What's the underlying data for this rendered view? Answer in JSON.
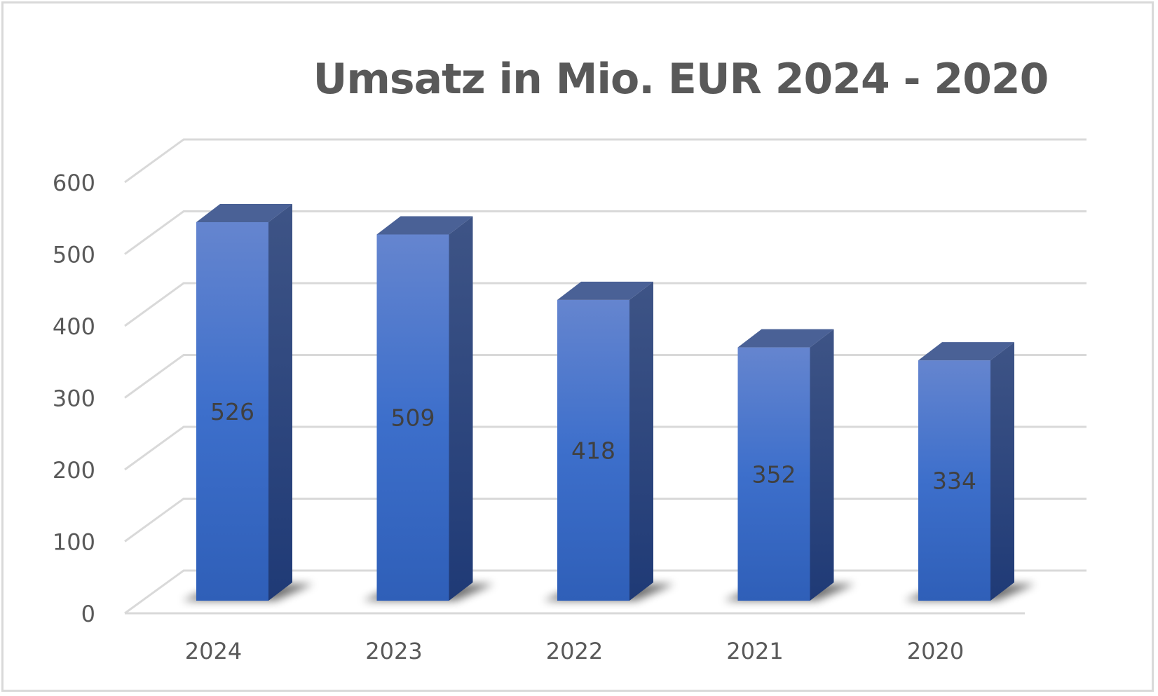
{
  "chart_data": {
    "type": "bar",
    "style": "3d-column",
    "title": "Umsatz in Mio. EUR 2024 - 2020",
    "xlabel": "",
    "ylabel": "",
    "categories": [
      "2024",
      "2023",
      "2022",
      "2021",
      "2020"
    ],
    "values": [
      526,
      509,
      418,
      352,
      334
    ],
    "data_labels": [
      "526",
      "509",
      "418",
      "352",
      "334"
    ],
    "yticks": [
      "0",
      "100",
      "200",
      "300",
      "400",
      "500",
      "600"
    ],
    "ylim": [
      0,
      600
    ],
    "grid": true,
    "legend": "none",
    "colors": {
      "bar_front": "#3a6cc8",
      "bar_top": "#4a6196",
      "bar_side": "#2c4a85",
      "grid": "#d9d9d9",
      "text": "#595959"
    }
  }
}
